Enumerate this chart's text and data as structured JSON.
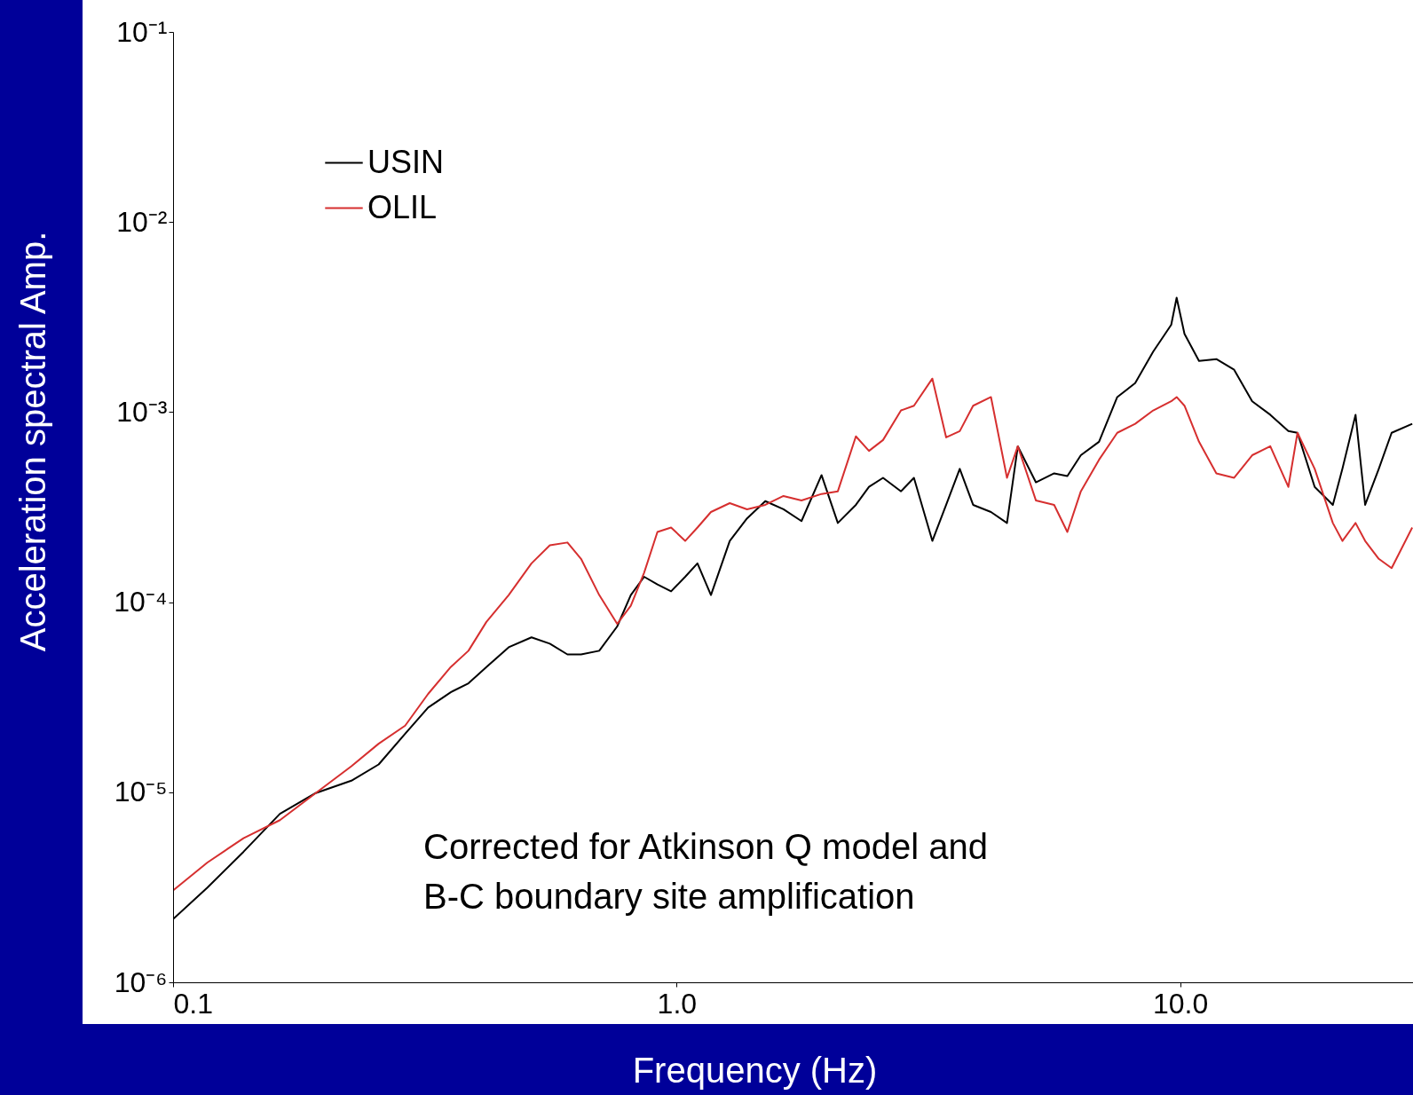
{
  "chart_data": {
    "type": "line",
    "xlabel": "Frequency (Hz)",
    "ylabel": "Acceleration spectral Amp.",
    "log": "xy",
    "legend": "top left",
    "x": [
      0.1,
      0.117,
      0.138,
      0.163,
      0.192,
      0.226,
      0.256,
      0.289,
      0.321,
      0.356,
      0.386,
      0.419,
      0.464,
      0.515,
      0.56,
      0.607,
      0.646,
      0.702,
      0.762,
      0.811,
      0.862,
      0.916,
      0.975,
      1.04,
      1.1,
      1.17,
      1.275,
      1.38,
      1.5,
      1.63,
      1.77,
      1.94,
      2.09,
      2.27,
      2.41,
      2.57,
      2.79,
      2.96,
      3.22,
      3.43,
      3.65,
      3.88,
      4.21,
      4.53,
      4.76,
      5.17,
      5.62,
      5.97,
      6.35,
      6.9,
      7.5,
      8.14,
      8.84,
      9.6,
      9.84,
      10.2,
      10.9,
      11.8,
      12.8,
      13.9,
      15.1,
      16.4,
      17.1,
      18.5,
      20.1,
      21.0,
      22.3,
      23.3,
      24.8,
      26.3,
      28.9
    ],
    "series": [
      {
        "name": "USIN",
        "color": "#000000",
        "values": [
          2.15e-06,
          3.15e-06,
          4.86e-06,
          7.7e-06,
          9.9e-06,
          1.15e-05,
          1.4e-05,
          2.03e-05,
          2.79e-05,
          3.36e-05,
          3.74e-05,
          4.56e-05,
          5.79e-05,
          6.53e-05,
          6.05e-05,
          5.31e-05,
          5.31e-05,
          5.55e-05,
          7.45e-05,
          0.000109,
          0.000136,
          0.000124,
          0.000114,
          0.000136,
          0.00016,
          0.000109,
          0.00021,
          0.000276,
          0.00034,
          0.000308,
          0.000267,
          0.000466,
          0.000261,
          0.000325,
          0.000404,
          0.000451,
          0.000383,
          0.000451,
          0.00021,
          0.000325,
          0.000503,
          0.000325,
          0.000298,
          0.000261,
          0.000661,
          0.000427,
          0.000476,
          0.000461,
          0.000593,
          0.000698,
          0.0012,
          0.00142,
          0.00208,
          0.00288,
          0.004,
          0.00258,
          0.00186,
          0.0019,
          0.00167,
          0.00114,
          0.000968,
          0.000794,
          0.000778,
          0.000404,
          0.000325,
          0.000503,
          0.000968,
          0.000325,
          0.000503,
          0.000778,
          0.000867
        ]
      },
      {
        "name": "OLIL",
        "color": "#d62f2f",
        "values": [
          3.04e-06,
          4.27e-06,
          5.73e-06,
          7.13e-06,
          9.9e-06,
          1.37e-05,
          1.8e-05,
          2.24e-05,
          3.29e-05,
          4.56e-05,
          5.55e-05,
          7.87e-05,
          0.000109,
          0.00016,
          0.000199,
          0.000206,
          0.000169,
          0.000109,
          7.69e-05,
          9.57e-05,
          0.000143,
          0.000234,
          0.000247,
          0.00021,
          0.000247,
          0.000298,
          0.000332,
          0.000308,
          0.000325,
          0.000362,
          0.000343,
          0.000371,
          0.000383,
          0.000745,
          0.000625,
          0.000713,
          0.00102,
          0.00108,
          0.0015,
          0.000736,
          0.000794,
          0.00108,
          0.0012,
          0.000451,
          0.000661,
          0.000343,
          0.000325,
          0.000234,
          0.000383,
          0.000561,
          0.000778,
          0.000867,
          0.00102,
          0.00114,
          0.0012,
          0.00108,
          0.000698,
          0.000476,
          0.000451,
          0.000593,
          0.000661,
          0.000404,
          0.000778,
          0.000503,
          0.000261,
          0.00021,
          0.000261,
          0.00021,
          0.000169,
          0.000151,
          0.000247
        ]
      }
    ],
    "xlim": [
      0.1,
      29
    ],
    "xticks": [
      0.1,
      {
        "value": 1,
        "label": "1.0"
      },
      {
        "value": 10,
        "label": "10.0"
      }
    ],
    "ylim": [
      1e-06,
      0.1
    ],
    "yticks": [
      {
        "value": 1e-06,
        "label": "10⁻⁶"
      },
      {
        "value": 1e-05,
        "label": "10⁻⁵"
      },
      {
        "value": 0.0001,
        "label": "10⁻⁴"
      },
      {
        "value": 0.001,
        "label": "10⁻³"
      },
      {
        "value": 0.01,
        "label": "10⁻²"
      },
      {
        "value": 0.1,
        "label": "10⁻¹"
      }
    ],
    "annotations": [
      "Corrected for Atkinson Q model and\nB-C boundary site amplification"
    ]
  }
}
